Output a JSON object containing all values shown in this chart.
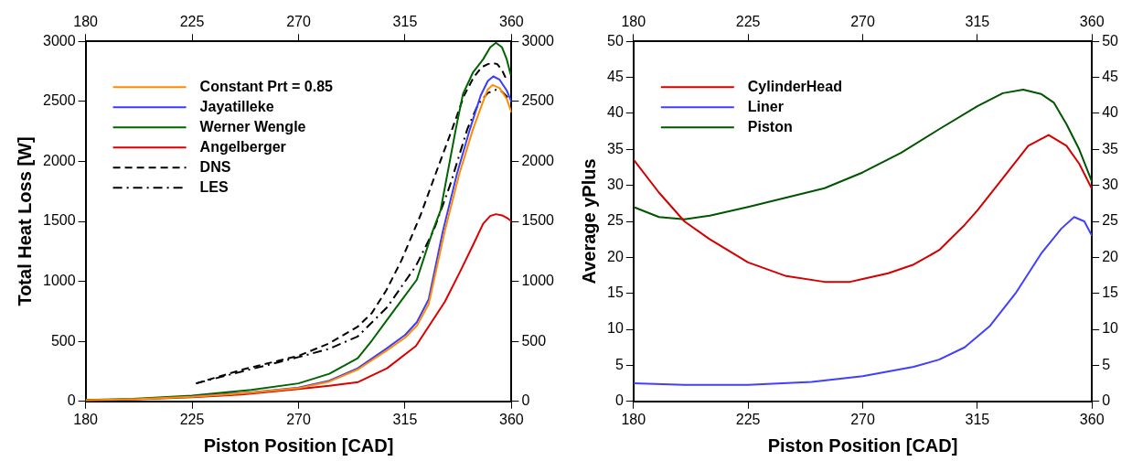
{
  "chart_data": [
    {
      "type": "line",
      "xlabel": "Piston Position [CAD]",
      "ylabel": "Total Heat Loss [W]",
      "xlim": [
        180,
        360
      ],
      "xticks": [
        180,
        225,
        270,
        315,
        360
      ],
      "x2lim": [
        180,
        360
      ],
      "x2ticks": [
        180,
        225,
        270,
        315,
        360
      ],
      "ylim": [
        0,
        3000
      ],
      "yticks": [
        0,
        500,
        1000,
        1500,
        2000,
        2500,
        3000
      ],
      "y2lim": [
        0,
        3000
      ],
      "y2ticks": [
        0,
        500,
        1000,
        1500,
        2000,
        2500,
        3000
      ],
      "legend": "top left",
      "marker": "none",
      "series": [
        {
          "name": "Constant Prt = 0.85",
          "color": "#ff8c00",
          "line_style": "solid",
          "x": [
            180,
            200,
            225,
            250,
            270,
            283,
            295,
            307,
            315,
            320,
            325,
            331.8,
            338,
            343.8,
            348,
            350,
            352,
            355,
            358,
            360
          ],
          "values": [
            10,
            18,
            38,
            72,
            110,
            165,
            265,
            420,
            530,
            630,
            810,
            1419,
            1900,
            2273,
            2500,
            2600,
            2636,
            2610,
            2520,
            2407
          ]
        },
        {
          "name": "Jayatilleke",
          "color": "#3b3bff",
          "line_style": "solid",
          "x": [
            225,
            250,
            270,
            283,
            295,
            307,
            315,
            320,
            325,
            331,
            337,
            342.5,
            347,
            350,
            352.3,
            355,
            358,
            360
          ],
          "values": [
            40,
            75,
            115,
            173,
            276,
            438,
            553,
            660,
            850,
            1419,
            1900,
            2273,
            2550,
            2670,
            2708,
            2680,
            2590,
            2495
          ]
        },
        {
          "name": "Werner Wengle",
          "color": "#006400",
          "line_style": "solid",
          "x": [
            180,
            200,
            225,
            250,
            270,
            283,
            295,
            301,
            307,
            313,
            320,
            326.7,
            330,
            336.5,
            339.5,
            343.8,
            348,
            351,
            353.4,
            356,
            358,
            359.7
          ],
          "values": [
            12,
            22,
            48,
            95,
            150,
            230,
            360,
            507,
            668,
            829,
            1014,
            1419,
            1590,
            2273,
            2562,
            2744,
            2850,
            2950,
            2988,
            2950,
            2850,
            2719
          ]
        },
        {
          "name": "Angelberger",
          "color": "#dd0000",
          "line_style": "solid",
          "x": [
            180,
            200,
            225,
            246,
            270,
            283,
            295.2,
            307.4,
            319.6,
            331.8,
            338,
            344,
            348,
            351,
            353.4,
            356,
            358,
            360
          ],
          "values": [
            8,
            15,
            35,
            58,
            104,
            130,
            161,
            276,
            461,
            829,
            1070,
            1313,
            1480,
            1545,
            1560,
            1550,
            1530,
            1500
          ]
        },
        {
          "name": "DNS",
          "color": "#000000",
          "line_style": "dashed",
          "x": [
            226.7,
            246.3,
            270,
            283,
            295,
            301,
            307,
            313.5,
            321.4,
            328,
            335,
            340,
            344,
            347.5,
            350,
            352,
            354,
            356,
            358
          ],
          "values": [
            150,
            265,
            380,
            484,
            622,
            737,
            922,
            1175,
            1544,
            1900,
            2273,
            2550,
            2700,
            2786,
            2810,
            2820,
            2810,
            2760,
            2676
          ]
        },
        {
          "name": "LES",
          "color": "#000000",
          "line_style": "dashdot",
          "x": [
            226.7,
            246.3,
            270,
            283,
            295,
            307.4,
            319.6,
            327,
            334,
            341.4,
            346,
            350,
            353.4,
            356,
            358,
            360
          ],
          "values": [
            150,
            250,
            369,
            438,
            541,
            783,
            1129,
            1419,
            1800,
            2273,
            2480,
            2570,
            2596,
            2580,
            2540,
            2500
          ]
        }
      ]
    },
    {
      "type": "line",
      "xlabel": "Piston Position [CAD]",
      "ylabel": "Average yPlus",
      "xlim": [
        180,
        360
      ],
      "xticks": [
        180,
        225,
        270,
        315,
        360
      ],
      "x2lim": [
        180,
        360
      ],
      "x2ticks": [
        180,
        225,
        270,
        315,
        360
      ],
      "ylim": [
        0,
        50
      ],
      "yticks": [
        0,
        5,
        10,
        15,
        20,
        25,
        30,
        35,
        40,
        45,
        50
      ],
      "y2lim": [
        0,
        50
      ],
      "y2ticks": [
        0,
        5,
        10,
        15,
        20,
        25,
        30,
        35,
        40,
        45,
        50
      ],
      "legend": "top left",
      "marker": "none",
      "series": [
        {
          "name": "CylinderHead",
          "color": "#d40000",
          "line_style": "solid",
          "x": [
            180,
            190,
            200,
            210,
            225,
            240,
            255,
            265,
            270,
            280,
            290,
            300,
            310,
            315,
            325,
            335,
            343,
            350,
            355,
            360
          ],
          "values": [
            33.6,
            29,
            25,
            22.5,
            19.3,
            17.4,
            16.6,
            16.6,
            17,
            17.8,
            19,
            21,
            24.5,
            26.5,
            31,
            35.5,
            37,
            35.5,
            33,
            29.5
          ]
        },
        {
          "name": "Liner",
          "color": "#4040ff",
          "line_style": "solid",
          "x": [
            180,
            200,
            225,
            250,
            270,
            290,
            300,
            310,
            320,
            330,
            340,
            348,
            353,
            357,
            360
          ],
          "values": [
            2.5,
            2.3,
            2.3,
            2.7,
            3.5,
            4.8,
            5.8,
            7.5,
            10.5,
            15,
            20.5,
            24,
            25.6,
            25,
            23
          ]
        },
        {
          "name": "Piston",
          "color": "#005500",
          "line_style": "solid",
          "x": [
            180,
            190,
            200,
            210,
            225,
            240,
            255,
            270,
            285,
            300,
            315,
            325,
            333,
            340,
            345,
            350,
            355,
            360
          ],
          "values": [
            27,
            25.6,
            25.3,
            25.8,
            27,
            28.3,
            29.6,
            31.8,
            34.5,
            37.8,
            41,
            42.8,
            43.3,
            42.7,
            41.5,
            38.5,
            35,
            30.5
          ]
        }
      ]
    }
  ]
}
